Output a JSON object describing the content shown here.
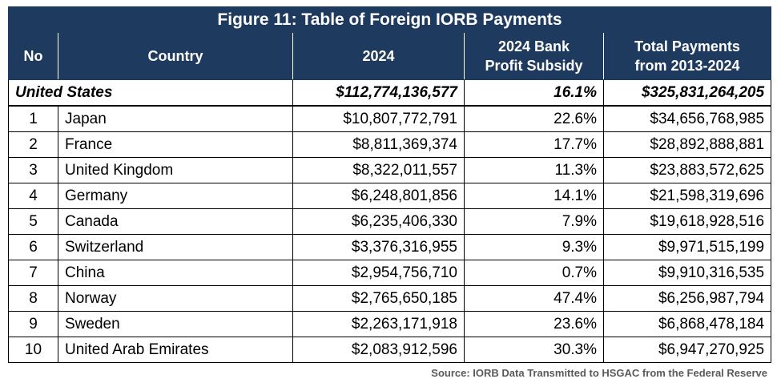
{
  "title": "Figure 11: Table of Foreign IORB Payments",
  "columns": {
    "no": "No",
    "country": "Country",
    "year": "2024",
    "subsidy_line1": "2024 Bank",
    "subsidy_line2": "Profit Subsidy",
    "total_line1": "Total Payments",
    "total_line2": "from 2013-2024"
  },
  "us_row": {
    "country": "United States",
    "payment_2024": "$112,774,136,577",
    "subsidy": "16.1%",
    "total": "$325,831,264,205"
  },
  "rows": [
    {
      "no": "1",
      "country": "Japan",
      "payment_2024": "$10,807,772,791",
      "subsidy": "22.6%",
      "total": "$34,656,768,985"
    },
    {
      "no": "2",
      "country": "France",
      "payment_2024": "$8,811,369,374",
      "subsidy": "17.7%",
      "total": "$28,892,888,881"
    },
    {
      "no": "3",
      "country": "United Kingdom",
      "payment_2024": "$8,322,011,557",
      "subsidy": "11.3%",
      "total": "$23,883,572,625"
    },
    {
      "no": "4",
      "country": "Germany",
      "payment_2024": "$6,248,801,856",
      "subsidy": "14.1%",
      "total": "$21,598,319,696"
    },
    {
      "no": "5",
      "country": "Canada",
      "payment_2024": "$6,235,406,330",
      "subsidy": "7.9%",
      "total": "$19,618,928,516"
    },
    {
      "no": "6",
      "country": "Switzerland",
      "payment_2024": "$3,376,316,955",
      "subsidy": "9.3%",
      "total": "$9,971,515,199"
    },
    {
      "no": "7",
      "country": "China",
      "payment_2024": "$2,954,756,710",
      "subsidy": "0.7%",
      "total": "$9,910,316,535"
    },
    {
      "no": "8",
      "country": "Norway",
      "payment_2024": "$2,765,650,185",
      "subsidy": "47.4%",
      "total": "$6,256,987,794"
    },
    {
      "no": "9",
      "country": "Sweden",
      "payment_2024": "$2,263,171,918",
      "subsidy": "23.6%",
      "total": "$6,868,478,184"
    },
    {
      "no": "10",
      "country": "United Arab Emirates",
      "payment_2024": "$2,083,912,596",
      "subsidy": "30.3%",
      "total": "$6,947,270,925"
    }
  ],
  "source": "Source: IORB Data Transmitted to HSGAC from the Federal Reserve",
  "colors": {
    "header_bg": "#1f3a5f",
    "header_text": "#ffffff",
    "source_text": "#5a5a5a"
  }
}
